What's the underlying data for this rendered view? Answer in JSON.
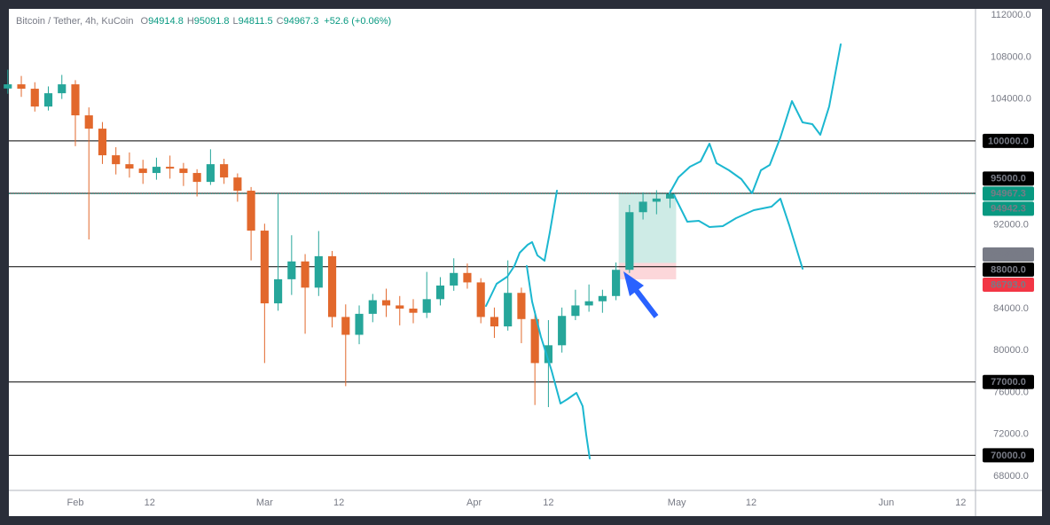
{
  "chart_data": {
    "type": "candlestick",
    "symbol": "Bitcoin / Tether, 4h, KuCoin",
    "ohlc_legend": [
      {
        "key": "O",
        "value": "94914.8"
      },
      {
        "key": "H",
        "value": "95091.8"
      },
      {
        "key": "L",
        "value": "94811.5"
      },
      {
        "key": "C",
        "value": "94967.3"
      }
    ],
    "change": "+52.6 (+0.06%)",
    "up_color": "#26a69a",
    "down_color": "#e2682c",
    "x": [
      22,
      24,
      26,
      28,
      30,
      32,
      34,
      36,
      38,
      40,
      42,
      44,
      46,
      48,
      50,
      52,
      54,
      56,
      58,
      60,
      62,
      64,
      66,
      68,
      70,
      72,
      74,
      76,
      78,
      80,
      82,
      84,
      86,
      88,
      90,
      92,
      94,
      96,
      98,
      100,
      102,
      104,
      106,
      108,
      110,
      112,
      114,
      116,
      118,
      120
    ],
    "open": [
      105000,
      105400,
      104980,
      103280,
      104550,
      105400,
      102440,
      101170,
      98630,
      97780,
      97360,
      96940,
      97530,
      97360,
      96940,
      96090,
      97780,
      96510,
      95250,
      91440,
      84500,
      86800,
      88500,
      86000,
      89000,
      83200,
      81500,
      83500,
      84800,
      84300,
      84000,
      83600,
      84900,
      86200,
      87400,
      86500,
      83200,
      82300,
      85500,
      83000,
      78800,
      80500,
      83300,
      84300,
      84700,
      85200,
      87700,
      93200,
      94200,
      94500
    ],
    "high": [
      106800,
      106200,
      105600,
      105200,
      106300,
      105800,
      103200,
      101800,
      99400,
      98900,
      98200,
      98400,
      98600,
      97900,
      97300,
      99200,
      98300,
      96900,
      95600,
      92100,
      95000,
      91000,
      89200,
      91400,
      89500,
      84400,
      84300,
      85400,
      85900,
      85200,
      84900,
      87500,
      87000,
      88800,
      88300,
      86900,
      84100,
      88600,
      86000,
      83800,
      82900,
      84100,
      85800,
      86300,
      85800,
      88400,
      93900,
      95100,
      95300,
      95300
    ],
    "low": [
      104500,
      104200,
      102800,
      102900,
      104000,
      99500,
      90600,
      97800,
      96800,
      96500,
      95900,
      96300,
      96400,
      95700,
      94700,
      95800,
      95900,
      94200,
      88600,
      78800,
      83800,
      85300,
      81600,
      85200,
      82200,
      76600,
      80600,
      82700,
      83200,
      82400,
      82600,
      83100,
      84300,
      85700,
      85900,
      82600,
      81200,
      81900,
      80700,
      74800,
      74600,
      79800,
      82900,
      83700,
      83600,
      84800,
      87400,
      92500,
      93000,
      93600
    ],
    "close": [
      105400,
      104980,
      103280,
      104550,
      105400,
      102440,
      101170,
      98630,
      97780,
      97360,
      96940,
      97530,
      97360,
      96940,
      96090,
      97780,
      96510,
      95250,
      91440,
      84500,
      86800,
      88500,
      86000,
      89000,
      83200,
      81500,
      83500,
      84800,
      84300,
      84000,
      83600,
      84900,
      86200,
      87400,
      86500,
      83200,
      82300,
      85500,
      83000,
      78800,
      80500,
      83300,
      84300,
      84700,
      85200,
      87700,
      93200,
      94200,
      94500,
      94967.3
    ],
    "xlim": [
      22.16,
      165.2
    ],
    "xticks": [
      {
        "value": 32,
        "label": "Feb"
      },
      {
        "value": 43,
        "label": "12"
      },
      {
        "value": 60,
        "label": "Mar"
      },
      {
        "value": 71,
        "label": "12"
      },
      {
        "value": 91,
        "label": "Apr"
      },
      {
        "value": 102,
        "label": "12"
      },
      {
        "value": 121,
        "label": "May"
      },
      {
        "value": 132,
        "label": "12"
      },
      {
        "value": 152,
        "label": "Jun"
      },
      {
        "value": 163,
        "label": "12"
      }
    ],
    "ylim": [
      66650,
      112600
    ],
    "yticks": [
      {
        "value": 68000,
        "label": "68000.0"
      },
      {
        "value": 72000,
        "label": "72000.0"
      },
      {
        "value": 76000,
        "label": "76000.0"
      },
      {
        "value": 80000,
        "label": "80000.0"
      },
      {
        "value": 84000,
        "label": "84000.0"
      },
      {
        "value": 92000,
        "label": "92000.0"
      },
      {
        "value": 104000,
        "label": "104000.0"
      },
      {
        "value": 108000,
        "label": "108000.0"
      },
      {
        "value": 112000,
        "label": "112000.0"
      }
    ],
    "levels": [
      {
        "value": 100000,
        "label": "100000.0"
      },
      {
        "value": 95000,
        "label": "95000.0"
      },
      {
        "value": 88000,
        "label": "88000.0"
      },
      {
        "value": 77000,
        "label": "77000.0"
      },
      {
        "value": 70000,
        "label": "70000.0"
      }
    ],
    "price_line": {
      "value": 94967.3,
      "color": "#089981"
    },
    "position": {
      "start": 112.4,
      "end": 120.9,
      "target": 94942.3,
      "target_color": "#089981",
      "entry": 88362.3,
      "entry_color": "#787b86",
      "stop": {
        "value": 86793,
        "label": "86793.0"
      },
      "stop_color": "#f23645"
    }
  }
}
